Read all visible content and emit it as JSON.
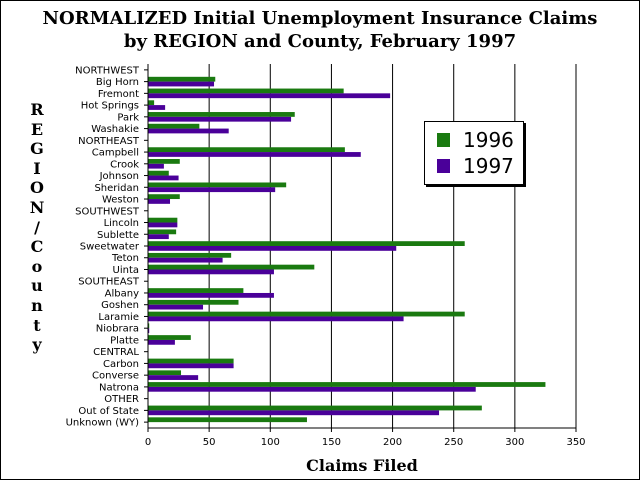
{
  "chart_data": {
    "type": "bar",
    "orientation": "horizontal",
    "title": "NORMALIZED Initial Unemployment Insurance Claims",
    "subtitle": "by REGION and County, February 1997",
    "xlabel": "Claims Filed",
    "ylabel": "REGION/County",
    "xlim": [
      0,
      350
    ],
    "xticks": [
      0,
      50,
      100,
      150,
      200,
      250,
      300,
      350
    ],
    "grid": "vertical",
    "legend_position": "right",
    "categories": [
      "NORTHWEST",
      "Big Horn",
      "Fremont",
      "Hot Springs",
      "Park",
      "Washakie",
      "NORTHEAST",
      "Campbell",
      "Crook",
      "Johnson",
      "Sheridan",
      "Weston",
      "SOUTHWEST",
      "Lincoln",
      "Sublette",
      "Sweetwater",
      "Teton",
      "Uinta",
      "SOUTHEAST",
      "Albany",
      "Goshen",
      "Laramie",
      "Niobrara",
      "Platte",
      "CENTRAL",
      "Carbon",
      "Converse",
      "Natrona",
      "OTHER",
      "Out of State",
      "Unknown (WY)"
    ],
    "series": [
      {
        "name": "1996",
        "color": "#1a7a10",
        "values": [
          null,
          55,
          160,
          5,
          120,
          42,
          null,
          161,
          26,
          17,
          113,
          26,
          null,
          24,
          23,
          259,
          68,
          136,
          null,
          78,
          74,
          259,
          1,
          35,
          null,
          70,
          27,
          325,
          null,
          273,
          130
        ]
      },
      {
        "name": "1997",
        "color": "#4a0099",
        "values": [
          null,
          54,
          198,
          14,
          117,
          66,
          null,
          174,
          13,
          25,
          104,
          18,
          null,
          24,
          17,
          203,
          61,
          103,
          null,
          103,
          45,
          209,
          1,
          22,
          null,
          70,
          41,
          268,
          null,
          238,
          null
        ]
      }
    ]
  }
}
